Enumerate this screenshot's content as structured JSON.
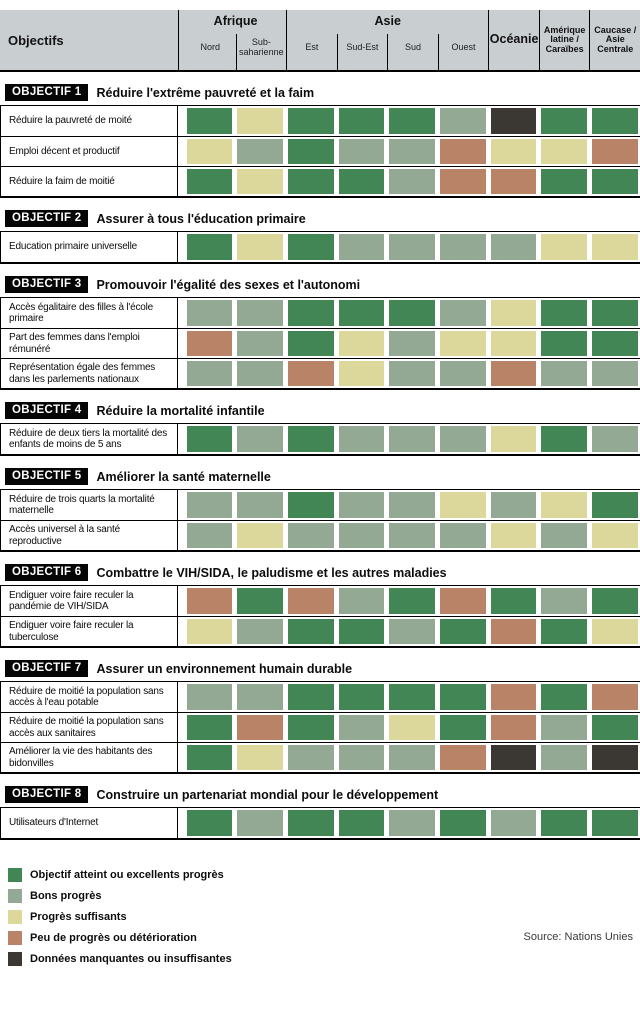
{
  "chart_data": {
    "type": "heatmap",
    "title": "Objectifs",
    "source": "Source: Nations Unies",
    "columns": [
      "Nord",
      "Sub-saharienne",
      "Est",
      "Sud-Est",
      "Sud",
      "Ouest",
      "Océanie",
      "Amérique latine / Caraïbes",
      "Caucase / Asie Centrale"
    ],
    "column_groups": [
      {
        "label": "Afrique",
        "span": 2,
        "size": "big"
      },
      {
        "label": "Asie",
        "span": 4,
        "size": "big"
      },
      {
        "label": "Océanie",
        "span": 1,
        "size": "big"
      },
      {
        "label": "Amérique latine / Caraïbes",
        "span": 1,
        "size": "small"
      },
      {
        "label": "Caucase / Asie Centrale",
        "span": 1,
        "size": "small"
      }
    ],
    "legend": [
      {
        "key": "G",
        "label": "Objectif atteint ou excellents progrès",
        "color": "#428655"
      },
      {
        "key": "S",
        "label": "Bons progrès",
        "color": "#93a993"
      },
      {
        "key": "Y",
        "label": "Progrès suffisants",
        "color": "#dcd89b"
      },
      {
        "key": "B",
        "label": "Peu de progrès ou détérioration",
        "color": "#b98368"
      },
      {
        "key": "D",
        "label": "Données manquantes ou insuffisantes",
        "color": "#3b3733"
      }
    ],
    "sections": [
      {
        "badge": "OBJECTIF 1",
        "title": "Réduire l'extrême pauvreté et la faim",
        "rows": [
          {
            "label": "Réduire la pauvreté de moité",
            "values": [
              "G",
              "Y",
              "G",
              "G",
              "G",
              "S",
              "D",
              "G",
              "G"
            ]
          },
          {
            "label": "Emploi décent et productif",
            "values": [
              "Y",
              "S",
              "G",
              "S",
              "S",
              "B",
              "Y",
              "Y",
              "B"
            ]
          },
          {
            "label": "Réduire la faim de moitié",
            "values": [
              "G",
              "Y",
              "G",
              "G",
              "S",
              "B",
              "B",
              "G",
              "G"
            ]
          }
        ]
      },
      {
        "badge": "OBJECTIF 2",
        "title": "Assurer à tous l'éducation primaire",
        "rows": [
          {
            "label": "Education primaire universelle",
            "values": [
              "G",
              "Y",
              "G",
              "S",
              "S",
              "S",
              "S",
              "Y",
              "Y"
            ]
          }
        ]
      },
      {
        "badge": "OBJECTIF 3",
        "title": "Promouvoir l'égalité des sexes et l'autonomi",
        "rows": [
          {
            "label": "Accès égalitaire des filles à l'école primaire",
            "values": [
              "S",
              "S",
              "G",
              "G",
              "G",
              "S",
              "Y",
              "G",
              "G"
            ]
          },
          {
            "label": "Part des femmes dans l'emploi rémunéré",
            "values": [
              "B",
              "S",
              "G",
              "Y",
              "S",
              "Y",
              "Y",
              "G",
              "G"
            ]
          },
          {
            "label": "Représentation égale des femmes dans les parlements nationaux",
            "values": [
              "S",
              "S",
              "B",
              "Y",
              "S",
              "S",
              "B",
              "S",
              "S"
            ]
          }
        ]
      },
      {
        "badge": "OBJECTIF 4",
        "title": "Réduire la mortalité infantile",
        "rows": [
          {
            "label": "Réduire de deux tiers la mortalité des enfants de moins de 5 ans",
            "values": [
              "G",
              "S",
              "G",
              "S",
              "S",
              "S",
              "Y",
              "G",
              "S"
            ]
          }
        ]
      },
      {
        "badge": "OBJECTIF 5",
        "title": "Améliorer la santé maternelle",
        "rows": [
          {
            "label": "Réduire de trois quarts la mortalité maternelle",
            "values": [
              "S",
              "S",
              "G",
              "S",
              "S",
              "Y",
              "S",
              "Y",
              "G"
            ]
          },
          {
            "label": "Accès universel à la santé reproductive",
            "values": [
              "S",
              "Y",
              "S",
              "S",
              "S",
              "S",
              "Y",
              "S",
              "Y"
            ]
          }
        ]
      },
      {
        "badge": "OBJECTIF 6",
        "title": "Combattre le VIH/SIDA, le paludisme et les autres maladies",
        "rows": [
          {
            "label": "Endiguer voire faire reculer la pandémie de VIH/SIDA",
            "values": [
              "B",
              "G",
              "B",
              "S",
              "G",
              "B",
              "G",
              "S",
              "G"
            ]
          },
          {
            "label": "Endiguer voire faire reculer la tuberculose",
            "values": [
              "Y",
              "S",
              "G",
              "G",
              "S",
              "G",
              "B",
              "G",
              "Y"
            ]
          }
        ]
      },
      {
        "badge": "OBJECTIF 7",
        "title": "Assurer un environnement humain durable",
        "rows": [
          {
            "label": "Réduire de moitié la population sans accès à l'eau potable",
            "values": [
              "S",
              "S",
              "G",
              "G",
              "G",
              "G",
              "B",
              "G",
              "B"
            ]
          },
          {
            "label": "Réduire de moitié la population sans accès aux sanitaires",
            "values": [
              "G",
              "B",
              "G",
              "S",
              "Y",
              "G",
              "B",
              "S",
              "G"
            ]
          },
          {
            "label": "Améliorer la vie des habitants des bidonvilles",
            "values": [
              "G",
              "Y",
              "S",
              "S",
              "S",
              "B",
              "D",
              "S",
              "D"
            ]
          }
        ]
      },
      {
        "badge": "OBJECTIF 8",
        "title": "Construire un partenariat mondial pour le développement",
        "rows": [
          {
            "label": "Utilisateurs d'Internet",
            "values": [
              "G",
              "S",
              "G",
              "G",
              "S",
              "G",
              "S",
              "G",
              "G"
            ]
          }
        ]
      }
    ],
    "colors": {
      "header_bg": "#c9ced1",
      "border": "#000000",
      "badge_bg": "#050505"
    }
  }
}
